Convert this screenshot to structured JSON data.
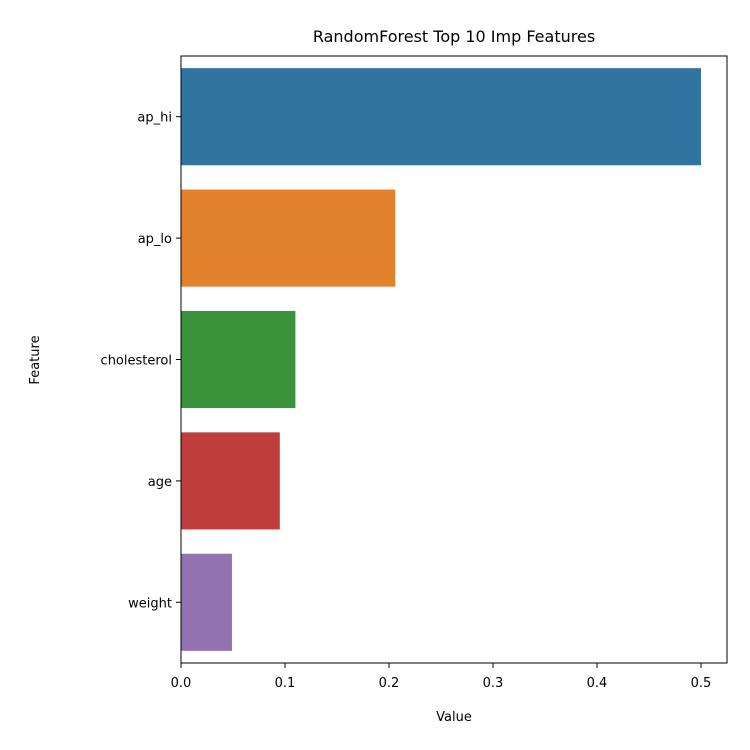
{
  "chart_data": {
    "type": "bar",
    "orientation": "horizontal",
    "title": "RandomForest Top 10 Imp Features",
    "xlabel": "Value",
    "ylabel": "Feature",
    "categories": [
      "ap_hi",
      "ap_lo",
      "cholesterol",
      "age",
      "weight"
    ],
    "values": [
      0.5,
      0.206,
      0.11,
      0.095,
      0.049
    ],
    "colors": [
      "#3274a1",
      "#e1812c",
      "#3a923a",
      "#c03d3e",
      "#9372b2"
    ],
    "xlim": [
      0,
      0.525
    ],
    "xticks": [
      0.0,
      0.1,
      0.2,
      0.3,
      0.4,
      0.5
    ],
    "xtick_labels": [
      "0.0",
      "0.1",
      "0.2",
      "0.3",
      "0.4",
      "0.5"
    ],
    "grid": false,
    "legend": "none"
  }
}
